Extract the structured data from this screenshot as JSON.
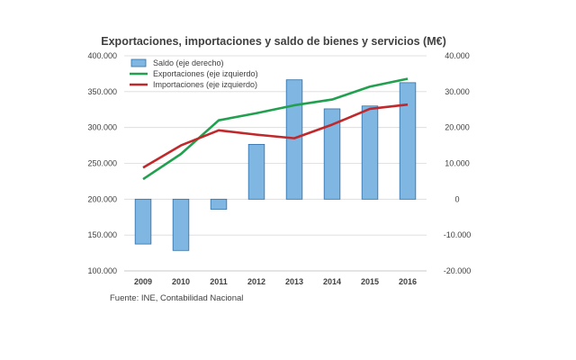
{
  "chart_data": {
    "type": "bar+line",
    "title": "Exportaciones, importaciones y saldo de bienes y servicios (M€)",
    "categories": [
      "2009",
      "2010",
      "2011",
      "2012",
      "2013",
      "2014",
      "2015",
      "2016"
    ],
    "y_left": {
      "min": 100000,
      "max": 400000,
      "step": 50000,
      "ticks": [
        "100.000",
        "150.000",
        "200.000",
        "250.000",
        "300.000",
        "350.000",
        "400.000"
      ]
    },
    "y_right": {
      "min": -20000,
      "max": 40000,
      "step": 10000,
      "ticks": [
        "-20.000",
        "-10.000",
        "0",
        "10.000",
        "20.000",
        "30.000",
        "40.000"
      ]
    },
    "series": [
      {
        "name": "Saldo (eje derecho)",
        "type": "bar",
        "axis": "right",
        "color": "#7fb7e2",
        "border": "#2f6fa8",
        "values": [
          -12500,
          -14300,
          -2800,
          15300,
          33300,
          25200,
          26000,
          32500
        ]
      },
      {
        "name": "Exportaciones (eje izquierdo)",
        "type": "line",
        "axis": "left",
        "color": "#21a04f",
        "values": [
          228000,
          263000,
          310000,
          320000,
          331000,
          339000,
          357000,
          368000
        ]
      },
      {
        "name": "Importaciones (eje izquierdo)",
        "type": "line",
        "axis": "left",
        "color": "#c0282b",
        "values": [
          244000,
          275000,
          296000,
          290000,
          285000,
          304000,
          326000,
          332000
        ]
      }
    ],
    "legend_position": "top-left",
    "grid": "horizontal"
  },
  "source": "Fuente: INE, Contabilidad Nacional"
}
